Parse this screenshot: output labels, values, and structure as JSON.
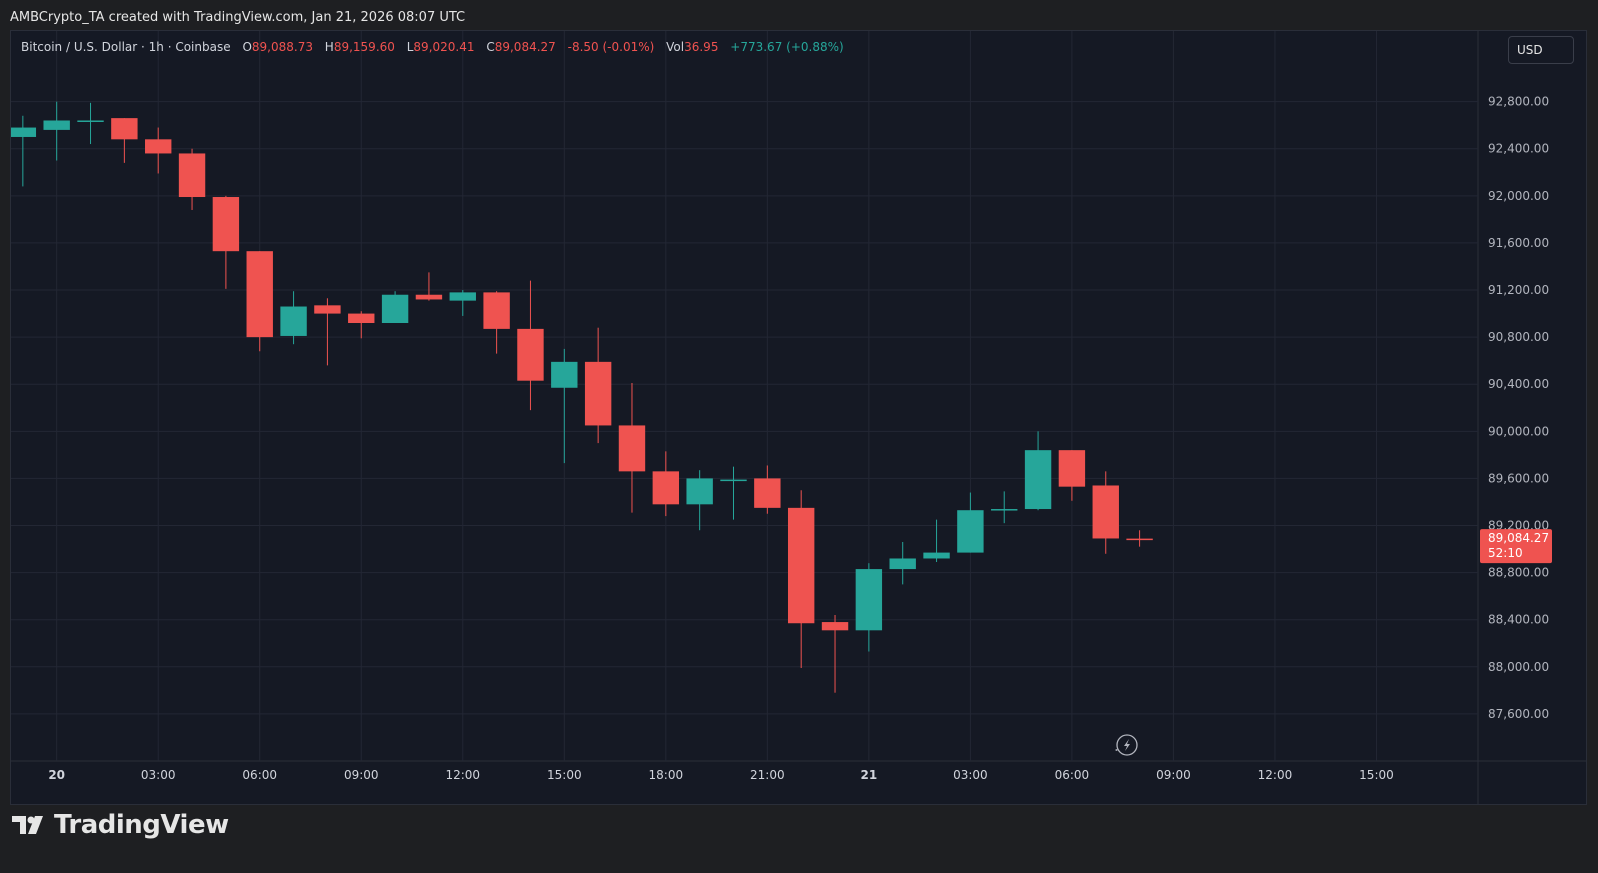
{
  "header": {
    "attribution": "AMBCrypto_TA created with TradingView.com, Jan 21, 2026 08:07 UTC"
  },
  "legend": {
    "symbol": "Bitcoin / U.S. Dollar · 1h · Coinbase",
    "open_label": "O",
    "open_value": "89,088.73",
    "high_label": "H",
    "high_value": "89,159.60",
    "low_label": "L",
    "low_value": "89,020.41",
    "close_label": "C",
    "close_value": "89,084.27",
    "change": "-8.50 (-0.01%)",
    "vol_label": "Vol",
    "vol_value": "36.95",
    "vol_change": "+773.67 (+0.88%)"
  },
  "currency_button": "USD",
  "footer": {
    "brand": "TradingView"
  },
  "colors": {
    "up": "#26a69a",
    "down": "#ef5350",
    "background": "#151924",
    "grid": "#232734"
  },
  "icons": {
    "footer_logo": "tradingview-logo-icon",
    "bottom_indicator": "lightning-icon"
  },
  "chart_data": {
    "type": "candlestick",
    "title": "Bitcoin / U.S. Dollar · 1h · Coinbase",
    "xlabel": "",
    "ylabel": "",
    "x_ticks": [
      {
        "label": "20",
        "hour": 0,
        "bold": true
      },
      {
        "label": "03:00",
        "hour": 3
      },
      {
        "label": "06:00",
        "hour": 6
      },
      {
        "label": "09:00",
        "hour": 9
      },
      {
        "label": "12:00",
        "hour": 12
      },
      {
        "label": "15:00",
        "hour": 15
      },
      {
        "label": "18:00",
        "hour": 18
      },
      {
        "label": "21:00",
        "hour": 21
      },
      {
        "label": "21",
        "hour": 24,
        "bold": true
      },
      {
        "label": "03:00",
        "hour": 27
      },
      {
        "label": "06:00",
        "hour": 30
      },
      {
        "label": "09:00",
        "hour": 33
      },
      {
        "label": "12:00",
        "hour": 36
      },
      {
        "label": "15:00",
        "hour": 39
      }
    ],
    "y_ticks": [
      "87,600.00",
      "88,000.00",
      "88,400.00",
      "88,800.00",
      "89,200.00",
      "89,600.00",
      "90,000.00",
      "90,400.00",
      "90,800.00",
      "91,200.00",
      "91,600.00",
      "92,000.00",
      "92,400.00",
      "92,800.00"
    ],
    "ylim": [
      87200,
      93400
    ],
    "xlim_hours": [
      -1.35,
      42
    ],
    "last_price": {
      "value": "89,084.27",
      "countdown": "52:10",
      "price": 89084.27
    },
    "candles": [
      {
        "hour": -1,
        "open": 92500,
        "high": 92680,
        "low": 92080,
        "close": 92580
      },
      {
        "hour": 0,
        "open": 92560,
        "high": 92800,
        "low": 92300,
        "close": 92640
      },
      {
        "hour": 1,
        "open": 92630,
        "high": 92790,
        "low": 92440,
        "close": 92640
      },
      {
        "hour": 2,
        "open": 92660,
        "high": 92660,
        "low": 92280,
        "close": 92480
      },
      {
        "hour": 3,
        "open": 92480,
        "high": 92580,
        "low": 92190,
        "close": 92360
      },
      {
        "hour": 4,
        "open": 92360,
        "high": 92400,
        "low": 91880,
        "close": 91990
      },
      {
        "hour": 5,
        "open": 91990,
        "high": 92000,
        "low": 91210,
        "close": 91530
      },
      {
        "hour": 6,
        "open": 91530,
        "high": 91530,
        "low": 90680,
        "close": 90800
      },
      {
        "hour": 7,
        "open": 90810,
        "high": 91190,
        "low": 90740,
        "close": 91060
      },
      {
        "hour": 8,
        "open": 91070,
        "high": 91130,
        "low": 90560,
        "close": 91000
      },
      {
        "hour": 9,
        "open": 91000,
        "high": 91020,
        "low": 90790,
        "close": 90920
      },
      {
        "hour": 10,
        "open": 90920,
        "high": 91190,
        "low": 90920,
        "close": 91160
      },
      {
        "hour": 11,
        "open": 91160,
        "high": 91350,
        "low": 91110,
        "close": 91120
      },
      {
        "hour": 12,
        "open": 91110,
        "high": 91200,
        "low": 90980,
        "close": 91180
      },
      {
        "hour": 13,
        "open": 91180,
        "high": 91190,
        "low": 90660,
        "close": 90870
      },
      {
        "hour": 14,
        "open": 90870,
        "high": 91280,
        "low": 90180,
        "close": 90430
      },
      {
        "hour": 15,
        "open": 90370,
        "high": 90700,
        "low": 89730,
        "close": 90590
      },
      {
        "hour": 16,
        "open": 90590,
        "high": 90880,
        "low": 89900,
        "close": 90050
      },
      {
        "hour": 17,
        "open": 90050,
        "high": 90410,
        "low": 89310,
        "close": 89660
      },
      {
        "hour": 18,
        "open": 89660,
        "high": 89830,
        "low": 89280,
        "close": 89380
      },
      {
        "hour": 19,
        "open": 89380,
        "high": 89670,
        "low": 89160,
        "close": 89600
      },
      {
        "hour": 20,
        "open": 89590,
        "high": 89700,
        "low": 89250,
        "close": 89590
      },
      {
        "hour": 21,
        "open": 89600,
        "high": 89710,
        "low": 89300,
        "close": 89350
      },
      {
        "hour": 22,
        "open": 89350,
        "high": 89500,
        "low": 87990,
        "close": 88370
      },
      {
        "hour": 23,
        "open": 88380,
        "high": 88440,
        "low": 87780,
        "close": 88310
      },
      {
        "hour": 24,
        "open": 88310,
        "high": 88880,
        "low": 88130,
        "close": 88830
      },
      {
        "hour": 25,
        "open": 88830,
        "high": 89060,
        "low": 88700,
        "close": 88920
      },
      {
        "hour": 26,
        "open": 88920,
        "high": 89250,
        "low": 88890,
        "close": 88970
      },
      {
        "hour": 27,
        "open": 88970,
        "high": 89480,
        "low": 88970,
        "close": 89330
      },
      {
        "hour": 28,
        "open": 89330,
        "high": 89490,
        "low": 89220,
        "close": 89340
      },
      {
        "hour": 29,
        "open": 89340,
        "high": 90000,
        "low": 89330,
        "close": 89840
      },
      {
        "hour": 30,
        "open": 89840,
        "high": 89840,
        "low": 89410,
        "close": 89530
      },
      {
        "hour": 31,
        "open": 89540,
        "high": 89660,
        "low": 88960,
        "close": 89090
      },
      {
        "hour": 32,
        "open": 89088.73,
        "high": 89159.6,
        "low": 89020.41,
        "close": 89084.27
      }
    ]
  }
}
